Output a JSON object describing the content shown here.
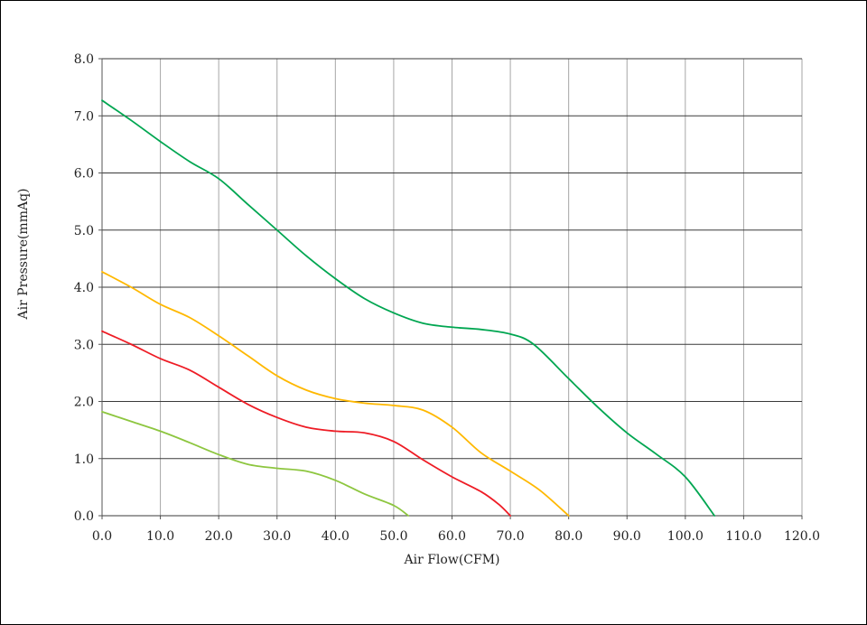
{
  "chart_data": {
    "type": "line",
    "title": "",
    "xlabel": "Air Flow(CFM)",
    "ylabel": "Air Pressure(mmAq)",
    "xlim": [
      0,
      120
    ],
    "ylim": [
      0,
      8
    ],
    "x_ticks": [
      "0.0",
      "10.0",
      "20.0",
      "30.0",
      "40.0",
      "50.0",
      "60.0",
      "70.0",
      "80.0",
      "90.0",
      "100.0",
      "110.0",
      "120.0"
    ],
    "y_ticks": [
      "0.0",
      "1.0",
      "2.0",
      "3.0",
      "4.0",
      "5.0",
      "6.0",
      "7.0",
      "8.0"
    ],
    "grid": true,
    "series": [
      {
        "color": "#00a651",
        "points": [
          [
            0,
            7.27
          ],
          [
            5,
            6.92
          ],
          [
            10,
            6.55
          ],
          [
            15,
            6.2
          ],
          [
            20,
            5.9
          ],
          [
            25,
            5.45
          ],
          [
            30,
            5.0
          ],
          [
            35,
            4.55
          ],
          [
            40,
            4.15
          ],
          [
            45,
            3.8
          ],
          [
            50,
            3.55
          ],
          [
            55,
            3.37
          ],
          [
            60,
            3.3
          ],
          [
            65,
            3.26
          ],
          [
            70,
            3.18
          ],
          [
            74,
            3.0
          ],
          [
            80,
            2.4
          ],
          [
            85,
            1.9
          ],
          [
            90,
            1.45
          ],
          [
            95,
            1.08
          ],
          [
            100,
            0.68
          ],
          [
            105,
            0.0
          ]
        ]
      },
      {
        "color": "#ffb800",
        "points": [
          [
            0,
            4.27
          ],
          [
            5,
            4.0
          ],
          [
            10,
            3.7
          ],
          [
            15,
            3.47
          ],
          [
            20,
            3.15
          ],
          [
            25,
            2.8
          ],
          [
            30,
            2.45
          ],
          [
            35,
            2.2
          ],
          [
            40,
            2.05
          ],
          [
            45,
            1.97
          ],
          [
            50,
            1.93
          ],
          [
            55,
            1.85
          ],
          [
            60,
            1.55
          ],
          [
            65,
            1.1
          ],
          [
            70,
            0.78
          ],
          [
            75,
            0.45
          ],
          [
            80,
            0.0
          ]
        ]
      },
      {
        "color": "#ee1c25",
        "points": [
          [
            0,
            3.23
          ],
          [
            5,
            3.0
          ],
          [
            10,
            2.75
          ],
          [
            15,
            2.55
          ],
          [
            20,
            2.25
          ],
          [
            25,
            1.95
          ],
          [
            30,
            1.72
          ],
          [
            35,
            1.55
          ],
          [
            40,
            1.48
          ],
          [
            45,
            1.45
          ],
          [
            50,
            1.3
          ],
          [
            55,
            0.98
          ],
          [
            60,
            0.68
          ],
          [
            65,
            0.42
          ],
          [
            68,
            0.2
          ],
          [
            70,
            0.0
          ]
        ]
      },
      {
        "color": "#8dc63f",
        "points": [
          [
            0,
            1.82
          ],
          [
            5,
            1.65
          ],
          [
            10,
            1.48
          ],
          [
            15,
            1.28
          ],
          [
            20,
            1.07
          ],
          [
            25,
            0.9
          ],
          [
            30,
            0.83
          ],
          [
            35,
            0.78
          ],
          [
            40,
            0.62
          ],
          [
            45,
            0.38
          ],
          [
            50,
            0.18
          ],
          [
            52.5,
            0.0
          ]
        ]
      }
    ]
  }
}
